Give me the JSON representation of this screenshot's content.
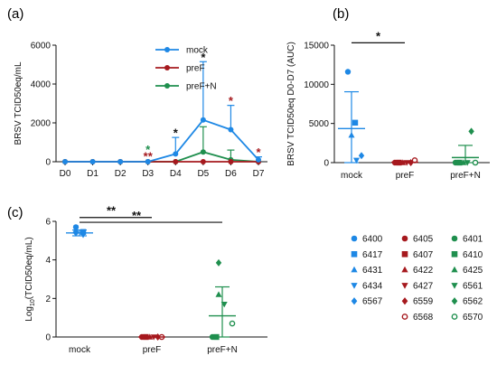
{
  "colors": {
    "mock": "#1E88E5",
    "preF": "#A6191E",
    "preFN": "#1F8F4E",
    "axis": "#111111",
    "star_black": "#111111"
  },
  "panels": {
    "a": {
      "letter": "(a)"
    },
    "b": {
      "letter": "(b)"
    },
    "c": {
      "letter": "(c)"
    }
  },
  "chart_data": [
    {
      "id": "a",
      "type": "line",
      "ylabel": "BRSV TCID50eq/mL",
      "xlabel": "",
      "categories": [
        "D0",
        "D1",
        "D2",
        "D3",
        "D4",
        "D5",
        "D6",
        "D7"
      ],
      "ylim": [
        0,
        6000
      ],
      "yticks": [
        0,
        2000,
        4000,
        6000
      ],
      "legend": "top-right",
      "series": [
        {
          "name": "mock",
          "color": "#1E88E5",
          "marker": "circle",
          "values": [
            0,
            0,
            0,
            0,
            400,
            2150,
            1650,
            100
          ],
          "err_upper": [
            0,
            0,
            0,
            0,
            1250,
            5150,
            2900,
            250
          ]
        },
        {
          "name": "preF",
          "color": "#A6191E",
          "marker": "circle",
          "values": [
            0,
            0,
            0,
            0,
            0,
            0,
            0,
            0
          ],
          "err_upper": [
            0,
            0,
            0,
            0,
            0,
            0,
            0,
            0
          ]
        },
        {
          "name": "preF+N",
          "color": "#1F8F4E",
          "marker": "circle",
          "values": [
            0,
            0,
            0,
            0,
            0,
            500,
            100,
            0
          ],
          "err_upper": [
            0,
            0,
            0,
            0,
            0,
            1800,
            600,
            0
          ]
        }
      ],
      "annotations": [
        {
          "x": "D3",
          "y": 700,
          "text": "*",
          "color": "#1F8F4E"
        },
        {
          "x": "D3",
          "y": 350,
          "text": "**",
          "color": "#A6191E"
        },
        {
          "x": "D4",
          "y": 1550,
          "text": "*",
          "color": "#111111"
        },
        {
          "x": "D5",
          "y": 5450,
          "text": "*",
          "color": "#111111"
        },
        {
          "x": "D6",
          "y": 3200,
          "text": "*",
          "color": "#A6191E"
        },
        {
          "x": "D7",
          "y": 550,
          "text": "*",
          "color": "#A6191E"
        }
      ]
    },
    {
      "id": "b",
      "type": "scatter",
      "ylabel": "BRSV TCID50eq D0-D7 (AUC)",
      "xlabel": "",
      "categories": [
        "mock",
        "preF",
        "preF+N"
      ],
      "ylim": [
        0,
        15000
      ],
      "yticks": [
        0,
        5000,
        10000,
        15000
      ],
      "groups": [
        {
          "name": "mock",
          "color": "#1E88E5",
          "mean": 4350,
          "sem_upper": 9050,
          "sem_lower": 0,
          "points": [
            {
              "animal": "6400",
              "y": 11600
            },
            {
              "animal": "6417",
              "y": 5100
            },
            {
              "animal": "6431",
              "y": 3500
            },
            {
              "animal": "6434",
              "y": 300
            },
            {
              "animal": "6567",
              "y": 900
            }
          ]
        },
        {
          "name": "preF",
          "color": "#A6191E",
          "mean": 50,
          "sem_upper": 200,
          "sem_lower": 0,
          "points": [
            {
              "animal": "6405",
              "y": 0
            },
            {
              "animal": "6407",
              "y": 0
            },
            {
              "animal": "6422",
              "y": 0
            },
            {
              "animal": "6427",
              "y": 0
            },
            {
              "animal": "6559",
              "y": 0
            },
            {
              "animal": "6568",
              "y": 300
            }
          ]
        },
        {
          "name": "preF+N",
          "color": "#1F8F4E",
          "mean": 650,
          "sem_upper": 2200,
          "sem_lower": 0,
          "points": [
            {
              "animal": "6401",
              "y": 0
            },
            {
              "animal": "6410",
              "y": 0
            },
            {
              "animal": "6425",
              "y": 0
            },
            {
              "animal": "6561",
              "y": 0
            },
            {
              "animal": "6562",
              "y": 4000
            },
            {
              "animal": "6570",
              "y": 0
            }
          ]
        }
      ],
      "significance": [
        {
          "from": "mock",
          "to": "preF",
          "y": 15300,
          "text": "*"
        }
      ]
    },
    {
      "id": "c",
      "type": "scatter",
      "ylabel_prefix": "Log",
      "ylabel_sub": "10",
      "ylabel_suffix": "(TCID50eq/mL)",
      "xlabel": "",
      "categories": [
        "mock",
        "preF",
        "preF+N"
      ],
      "ylim": [
        0,
        6
      ],
      "yticks": [
        0,
        2,
        4,
        6
      ],
      "groups": [
        {
          "name": "mock",
          "color": "#1E88E5",
          "mean": 5.4,
          "sem_upper": 5.55,
          "sem_lower": 5.25,
          "points": [
            {
              "animal": "6400",
              "y": 5.7
            },
            {
              "animal": "6417",
              "y": 5.45
            },
            {
              "animal": "6431",
              "y": 5.55
            },
            {
              "animal": "6434",
              "y": 5.3
            },
            {
              "animal": "6567",
              "y": 5.4
            }
          ]
        },
        {
          "name": "preF",
          "color": "#A6191E",
          "mean": 0,
          "sem_upper": 0,
          "sem_lower": 0,
          "points": [
            {
              "animal": "6405",
              "y": 0
            },
            {
              "animal": "6407",
              "y": 0
            },
            {
              "animal": "6422",
              "y": 0
            },
            {
              "animal": "6427",
              "y": 0
            },
            {
              "animal": "6559",
              "y": 0
            },
            {
              "animal": "6568",
              "y": 0
            }
          ]
        },
        {
          "name": "preF+N",
          "color": "#1F8F4E",
          "mean": 1.1,
          "sem_upper": 2.6,
          "sem_lower": 0,
          "points": [
            {
              "animal": "6401",
              "y": 0
            },
            {
              "animal": "6410",
              "y": 0
            },
            {
              "animal": "6425",
              "y": 2.2
            },
            {
              "animal": "6561",
              "y": 1.7
            },
            {
              "animal": "6562",
              "y": 3.85
            },
            {
              "animal": "6570",
              "y": 0.7
            }
          ]
        }
      ],
      "significance": [
        {
          "from": "mock",
          "to": "preF",
          "y": 6.2,
          "text": "**"
        },
        {
          "from": "mock",
          "to": "preF+N",
          "y": 5.95,
          "text": "**"
        }
      ]
    }
  ],
  "animal_legend": [
    {
      "id": "6400",
      "color": "#1E88E5",
      "shape": "circle"
    },
    {
      "id": "6417",
      "color": "#1E88E5",
      "shape": "square"
    },
    {
      "id": "6431",
      "color": "#1E88E5",
      "shape": "triangle-up"
    },
    {
      "id": "6434",
      "color": "#1E88E5",
      "shape": "triangle-down"
    },
    {
      "id": "6567",
      "color": "#1E88E5",
      "shape": "diamond"
    },
    {
      "id": "6405",
      "color": "#A6191E",
      "shape": "circle"
    },
    {
      "id": "6407",
      "color": "#A6191E",
      "shape": "square"
    },
    {
      "id": "6422",
      "color": "#A6191E",
      "shape": "triangle-up"
    },
    {
      "id": "6427",
      "color": "#A6191E",
      "shape": "triangle-down"
    },
    {
      "id": "6559",
      "color": "#A6191E",
      "shape": "diamond"
    },
    {
      "id": "6568",
      "color": "#A6191E",
      "shape": "circle-open"
    },
    {
      "id": "6401",
      "color": "#1F8F4E",
      "shape": "circle"
    },
    {
      "id": "6410",
      "color": "#1F8F4E",
      "shape": "square"
    },
    {
      "id": "6425",
      "color": "#1F8F4E",
      "shape": "triangle-up"
    },
    {
      "id": "6561",
      "color": "#1F8F4E",
      "shape": "triangle-down"
    },
    {
      "id": "6562",
      "color": "#1F8F4E",
      "shape": "diamond"
    },
    {
      "id": "6570",
      "color": "#1F8F4E",
      "shape": "circle-open"
    }
  ]
}
